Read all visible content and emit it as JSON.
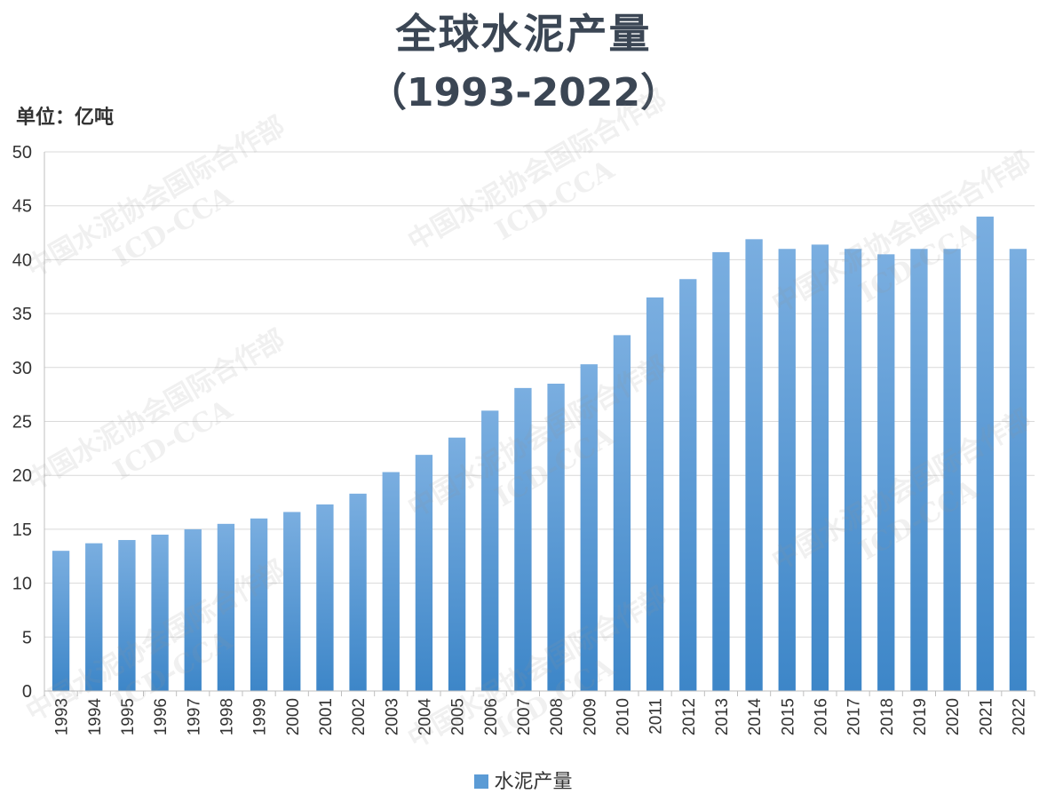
{
  "chart_data": {
    "type": "bar",
    "title": "全球水泥产量",
    "subtitle": "（1993-2022）",
    "unit_label": "单位：亿吨",
    "categories": [
      "1993",
      "1994",
      "1995",
      "1996",
      "1997",
      "1998",
      "1999",
      "2000",
      "2001",
      "2002",
      "2003",
      "2004",
      "2005",
      "2006",
      "2007",
      "2008",
      "2009",
      "2010",
      "2011",
      "2012",
      "2013",
      "2014",
      "2015",
      "2016",
      "2017",
      "2018",
      "2019",
      "2020",
      "2021",
      "2022"
    ],
    "series": [
      {
        "name": "水泥产量",
        "values": [
          13.0,
          13.7,
          14.0,
          14.5,
          15.0,
          15.5,
          16.0,
          16.6,
          17.3,
          18.3,
          20.3,
          21.9,
          23.5,
          26.0,
          28.1,
          28.5,
          30.3,
          33.0,
          36.5,
          38.2,
          40.7,
          41.9,
          41.0,
          41.4,
          41.0,
          40.5,
          41.0,
          41.0,
          44.0,
          41.0
        ]
      }
    ],
    "ylim": [
      0,
      50
    ],
    "yticks": [
      0,
      5,
      10,
      15,
      20,
      25,
      30,
      35,
      40,
      45,
      50
    ],
    "grid": true,
    "legend": "bottom",
    "bar_color": "#5b9bd5"
  },
  "watermark": {
    "line1": "中国水泥协会国际合作部",
    "line2": "ICD-CCA"
  }
}
